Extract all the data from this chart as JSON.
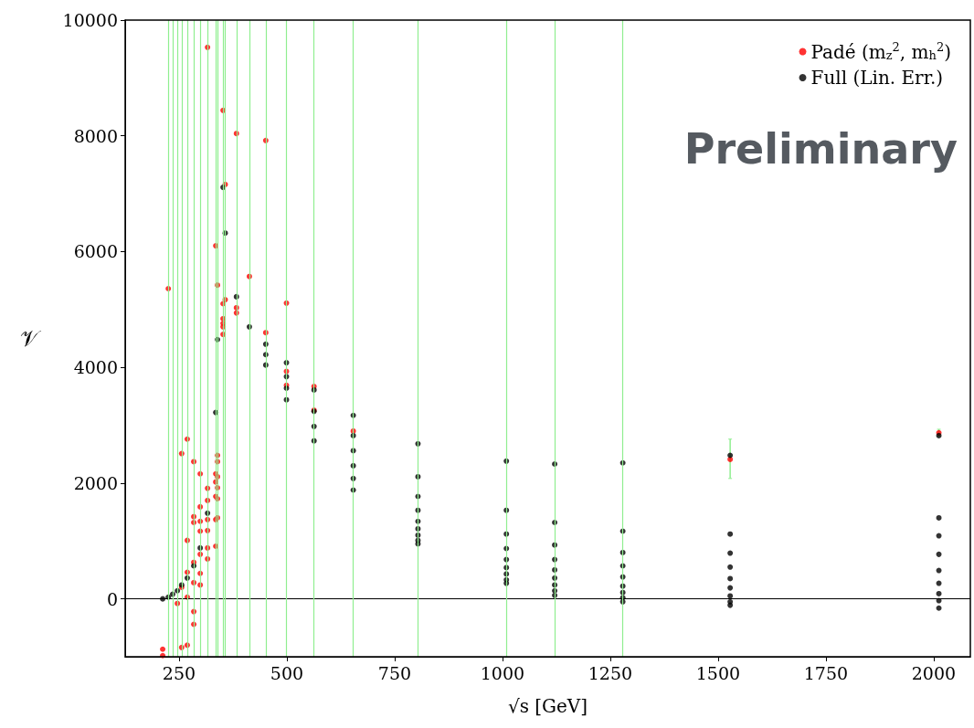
{
  "chart_data": {
    "type": "scatter",
    "xlabel": "√s [GeV]",
    "ylabel": "𝒱",
    "annotations": [
      "Preliminary"
    ],
    "xlim": [
      125,
      2085
    ],
    "xticks": [
      250,
      500,
      750,
      1000,
      1250,
      1500,
      1750,
      2000
    ],
    "ylim": [
      -1000,
      10000
    ],
    "yticks": [
      0,
      2000,
      4000,
      6000,
      8000,
      10000
    ],
    "grid": false,
    "legend": "top right",
    "marker": "circle",
    "ref_lines": [
      {
        "axis": "y",
        "value": 0,
        "color": "#000000"
      },
      {
        "axis": "x",
        "value": 225,
        "color": "#90ee90"
      },
      {
        "axis": "x",
        "value": 235,
        "color": "#90ee90"
      },
      {
        "axis": "x",
        "value": 246,
        "color": "#90ee90"
      },
      {
        "axis": "x",
        "value": 256,
        "color": "#90ee90"
      },
      {
        "axis": "x",
        "value": 269,
        "color": "#90ee90"
      },
      {
        "axis": "x",
        "value": 284,
        "color": "#90ee90"
      },
      {
        "axis": "x",
        "value": 299,
        "color": "#90ee90"
      },
      {
        "axis": "x",
        "value": 316,
        "color": "#90ee90"
      },
      {
        "axis": "x",
        "value": 335,
        "color": "#90ee90"
      },
      {
        "axis": "x",
        "value": 339,
        "color": "#90ee90"
      },
      {
        "axis": "x",
        "value": 352,
        "color": "#90ee90"
      },
      {
        "axis": "x",
        "value": 357,
        "color": "#90ee90"
      },
      {
        "axis": "x",
        "value": 383,
        "color": "#90ee90"
      },
      {
        "axis": "x",
        "value": 413,
        "color": "#90ee90"
      },
      {
        "axis": "x",
        "value": 451,
        "color": "#90ee90"
      },
      {
        "axis": "x",
        "value": 499,
        "color": "#90ee90"
      },
      {
        "axis": "x",
        "value": 563,
        "color": "#90ee90"
      },
      {
        "axis": "x",
        "value": 654,
        "color": "#90ee90"
      },
      {
        "axis": "x",
        "value": 804,
        "color": "#90ee90"
      },
      {
        "axis": "x",
        "value": 1009,
        "color": "#90ee90"
      },
      {
        "axis": "x",
        "value": 1121,
        "color": "#90ee90"
      },
      {
        "axis": "x",
        "value": 1279,
        "color": "#90ee90"
      }
    ],
    "series": [
      {
        "name": "Padé (m$_{z}$$^{2}$, m$_{h}$$^{2}$)",
        "color": "#ff0000",
        "x": [
          316,
          352,
          383,
          451,
          357,
          335,
          225,
          339,
          413,
          499,
          352,
          357,
          383,
          383,
          352,
          352,
          352,
          352,
          451,
          499,
          499,
          563,
          563,
          654,
          1528,
          2012,
          269,
          256,
          284,
          299,
          339,
          339,
          335,
          339,
          335,
          339,
          335,
          339,
          316,
          316,
          299,
          284,
          284,
          339,
          335,
          316,
          299,
          316,
          299,
          269,
          335,
          316,
          299,
          316,
          284,
          269,
          284,
          299,
          299,
          256,
          269,
          246,
          284,
          284,
          256,
          269,
          212,
          212
        ],
        "values": [
          9530,
          8440,
          8040,
          7920,
          7160,
          6100,
          5360,
          5420,
          5570,
          5110,
          5100,
          5170,
          5030,
          4940,
          4840,
          4760,
          4700,
          4570,
          4600,
          3930,
          3690,
          3670,
          3260,
          2900,
          2410,
          2870,
          2760,
          2510,
          2370,
          2160,
          2480,
          2370,
          2160,
          2110,
          2020,
          1920,
          1770,
          1730,
          1910,
          1700,
          1590,
          1420,
          1320,
          1400,
          1370,
          1370,
          1340,
          1180,
          1170,
          1010,
          910,
          880,
          770,
          690,
          630,
          460,
          280,
          440,
          240,
          200,
          30,
          -80,
          -220,
          -440,
          -840,
          -800,
          -870,
          -980
        ],
        "errors": [
          null,
          null,
          null,
          null,
          null,
          null,
          null,
          null,
          null,
          null,
          null,
          null,
          null,
          null,
          null,
          null,
          null,
          null,
          null,
          null,
          null,
          null,
          null,
          null,
          [
            2080,
            2760
          ],
          [
            2810,
            2930
          ],
          null,
          null,
          null,
          null,
          null,
          null,
          null,
          null,
          null,
          null,
          null,
          null,
          null,
          null,
          null,
          null,
          null,
          null,
          null,
          null,
          null,
          null,
          null,
          null,
          null,
          null,
          null,
          null,
          null,
          null,
          null,
          null,
          null,
          null,
          null,
          null,
          null,
          null,
          null,
          null,
          null,
          null
        ]
      },
      {
        "name": "Full (Lin. Err.)",
        "color": "#000000",
        "x": [
          212,
          225,
          235,
          246,
          256,
          269,
          284,
          299,
          316,
          335,
          339,
          352,
          357,
          383,
          413,
          451,
          451,
          451,
          499,
          499,
          499,
          499,
          563,
          563,
          563,
          563,
          654,
          654,
          654,
          654,
          654,
          654,
          804,
          804,
          804,
          804,
          804,
          804,
          804,
          804,
          804,
          1009,
          1009,
          1009,
          1009,
          1009,
          1009,
          1009,
          1009,
          1009,
          1121,
          1121,
          1121,
          1121,
          1121,
          1121,
          1121,
          1121,
          1121,
          1279,
          1279,
          1279,
          1279,
          1279,
          1279,
          1279,
          1279,
          1279,
          1528,
          1528,
          1528,
          1528,
          1528,
          1528,
          1528,
          1528,
          1528,
          2012,
          2012,
          2012,
          2012,
          2012,
          2012,
          2012,
          2012,
          2012
        ],
        "values": [
          0,
          30,
          80,
          140,
          240,
          360,
          570,
          880,
          1480,
          3220,
          4480,
          7110,
          6320,
          5220,
          4700,
          4400,
          4220,
          4040,
          4080,
          3840,
          3640,
          3440,
          3610,
          3240,
          2980,
          2730,
          3170,
          2820,
          2560,
          2300,
          2080,
          1880,
          2680,
          2110,
          1770,
          1530,
          1340,
          1210,
          1100,
          1010,
          950,
          2380,
          1530,
          1120,
          870,
          680,
          540,
          430,
          330,
          270,
          2330,
          1320,
          930,
          680,
          500,
          360,
          240,
          140,
          60,
          2350,
          1170,
          800,
          570,
          380,
          220,
          110,
          20,
          -50,
          2480,
          1120,
          790,
          550,
          350,
          190,
          50,
          -50,
          -110,
          2820,
          1400,
          1090,
          770,
          490,
          270,
          90,
          -30,
          -160
        ]
      }
    ]
  }
}
